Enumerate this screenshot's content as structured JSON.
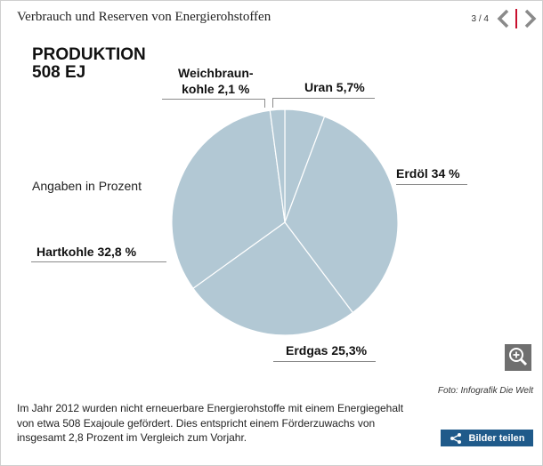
{
  "header": {
    "title": "Verbrauch und Reserven von Energierohstoffen",
    "page_indicator": "3 / 4"
  },
  "infographic": {
    "title_line1": "PRODUKTION",
    "title_line2": "508 EJ",
    "note": "Angaben in Prozent"
  },
  "chart_data": {
    "type": "pie",
    "title": "PRODUKTION 508 EJ",
    "note": "Angaben in Prozent",
    "start_angle_deg": 0,
    "slices": [
      {
        "name": "Uran",
        "value": 5.7,
        "label": "Uran 5,7%"
      },
      {
        "name": "Erdöl",
        "value": 34,
        "label": "Erdöl 34 %"
      },
      {
        "name": "Erdgas",
        "value": 25.3,
        "label": "Erdgas 25,3%"
      },
      {
        "name": "Hartkohle",
        "value": 32.8,
        "label": "Hartkohle 32,8 %"
      },
      {
        "name": "Weichbraunkohle",
        "value": 2.1,
        "label_line1": "Weichbraun-",
        "label_line2": "kohle 2,1 %"
      }
    ],
    "colors": {
      "fill": "#b2c8d4",
      "edge": "#ffffff"
    }
  },
  "credit": "Foto: Infografik Die Welt",
  "caption": "Im Jahr 2012 wurden nicht erneuerbare Energierohstoffe mit einem Energiegehalt von etwa 508 Exajoule gefördert. Dies entspricht einem Förderzuwachs von insgesamt 2,8 Prozent im Vergleich zum Vorjahr.",
  "share": {
    "label": "Bilder teilen"
  },
  "icons": {
    "prev": "chevron-left-icon",
    "next": "chevron-right-icon",
    "zoom": "zoom-in-icon",
    "share": "share-icon"
  },
  "colors": {
    "accent": "#c8102e",
    "share_bg": "#1f5a8a",
    "zoom_bg": "#6f6f6f"
  }
}
